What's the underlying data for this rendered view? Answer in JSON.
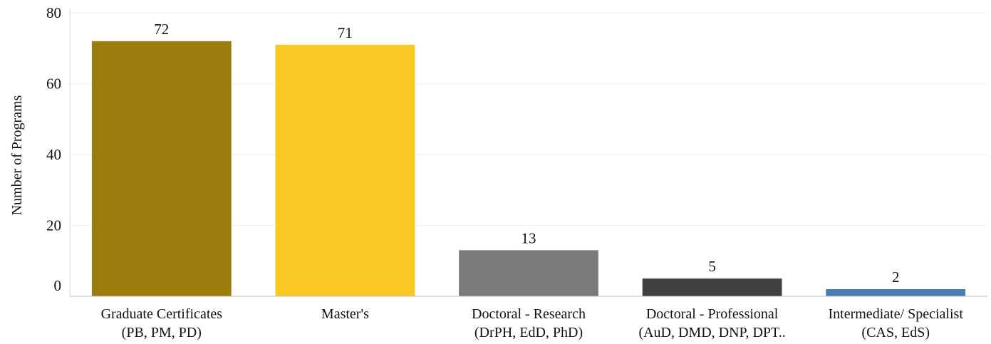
{
  "chart_data": {
    "type": "bar",
    "title": "",
    "xlabel": "",
    "ylabel": "Number of Programs",
    "ylim": [
      0,
      80
    ],
    "yticks": [
      0,
      20,
      40,
      60,
      80
    ],
    "grid": true,
    "legend": "none",
    "categories": [
      {
        "line1": "Graduate Certificates",
        "line2": "(PB, PM, PD)"
      },
      {
        "line1": "Master's",
        "line2": ""
      },
      {
        "line1": "Doctoral - Research",
        "line2": "(DrPH, EdD, PhD)"
      },
      {
        "line1": "Doctoral - Professional",
        "line2": "(AuD, DMD, DNP, DPT.."
      },
      {
        "line1": "Intermediate/ Specialist",
        "line2": "(CAS, EdS)"
      }
    ],
    "values": [
      72,
      71,
      13,
      5,
      2
    ],
    "colors": [
      "#9C7C0C",
      "#F9C823",
      "#7B7B7B",
      "#404040",
      "#4E7DB4"
    ]
  }
}
